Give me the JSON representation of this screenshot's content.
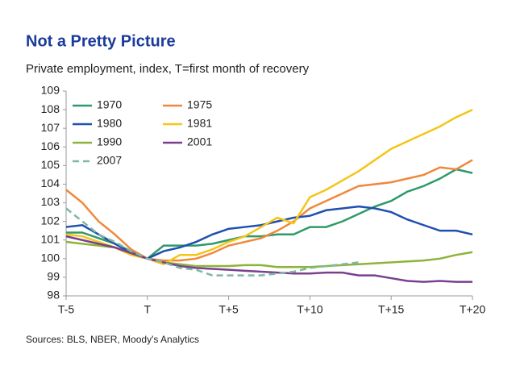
{
  "chart_data": {
    "type": "line",
    "title": "Not a Pretty Picture",
    "subtitle": "Private employment, index, T=first month of recovery",
    "source": "Sources: BLS, NBER, Moody's Analytics",
    "x": [
      -5,
      -4,
      -3,
      -2,
      -1,
      0,
      1,
      2,
      3,
      4,
      5,
      6,
      7,
      8,
      9,
      10,
      11,
      12,
      13,
      14,
      15,
      16,
      17,
      18,
      19,
      20
    ],
    "xlim": [
      -5,
      20
    ],
    "xticks": [
      {
        "value": -5,
        "label": "T-5"
      },
      {
        "value": 0,
        "label": "T"
      },
      {
        "value": 5,
        "label": "T+5"
      },
      {
        "value": 10,
        "label": "T+10"
      },
      {
        "value": 15,
        "label": "T+15"
      },
      {
        "value": 20,
        "label": "T+20"
      }
    ],
    "ylim": [
      98,
      109
    ],
    "yticks": [
      98,
      99,
      100,
      101,
      102,
      103,
      104,
      105,
      106,
      107,
      108,
      109
    ],
    "grid": false,
    "legend": "top-left",
    "series": [
      {
        "name": "1970",
        "color": "#2e9a6a",
        "dashed": false,
        "values": [
          101.4,
          101.4,
          101.1,
          100.8,
          100.4,
          100.0,
          100.7,
          100.7,
          100.7,
          100.8,
          101.0,
          101.2,
          101.2,
          101.3,
          101.3,
          101.7,
          101.7,
          102.0,
          102.4,
          102.8,
          103.1,
          103.6,
          103.9,
          104.3,
          104.8,
          104.6
        ]
      },
      {
        "name": "1975",
        "color": "#f0883a",
        "dashed": false,
        "values": [
          103.7,
          103.0,
          102.0,
          101.3,
          100.5,
          100.0,
          99.9,
          99.9,
          100.0,
          100.3,
          100.7,
          100.9,
          101.1,
          101.5,
          102.0,
          102.7,
          103.1,
          103.5,
          103.9,
          104.0,
          104.1,
          104.3,
          104.5,
          104.9,
          104.8,
          105.3
        ]
      },
      {
        "name": "1980",
        "color": "#1f4fb0",
        "dashed": false,
        "values": [
          101.7,
          101.8,
          101.3,
          100.8,
          100.3,
          100.0,
          100.4,
          100.6,
          100.9,
          101.3,
          101.6,
          101.7,
          101.8,
          102.0,
          102.2,
          102.3,
          102.6,
          102.7,
          102.8,
          102.7,
          102.5,
          102.1,
          101.8,
          101.5,
          101.5,
          101.3
        ]
      },
      {
        "name": "1981",
        "color": "#f5c518",
        "dashed": false,
        "values": [
          101.3,
          101.2,
          100.9,
          100.6,
          100.2,
          100.0,
          99.7,
          100.2,
          100.2,
          100.5,
          100.9,
          101.2,
          101.7,
          102.2,
          101.9,
          103.3,
          103.7,
          104.2,
          104.7,
          105.3,
          105.9,
          106.3,
          106.7,
          107.1,
          107.6,
          108.0
        ]
      },
      {
        "name": "1990",
        "color": "#8db33a",
        "dashed": false,
        "values": [
          100.9,
          100.8,
          100.7,
          100.6,
          100.3,
          100.0,
          99.8,
          99.7,
          99.6,
          99.6,
          99.6,
          99.65,
          99.65,
          99.55,
          99.55,
          99.55,
          99.6,
          99.65,
          99.7,
          99.75,
          99.8,
          99.85,
          99.9,
          100.0,
          100.2,
          100.35
        ]
      },
      {
        "name": "2001",
        "color": "#7b3f8f",
        "dashed": false,
        "values": [
          101.2,
          101.0,
          100.8,
          100.6,
          100.3,
          100.0,
          99.8,
          99.6,
          99.5,
          99.45,
          99.4,
          99.35,
          99.3,
          99.25,
          99.2,
          99.2,
          99.25,
          99.25,
          99.1,
          99.1,
          98.95,
          98.8,
          98.75,
          98.8,
          98.75,
          98.75
        ]
      },
      {
        "name": "2007",
        "color": "#7fb8a4",
        "dashed": true,
        "values": [
          102.7,
          102.0,
          101.3,
          100.9,
          100.4,
          100.0,
          99.8,
          99.5,
          99.4,
          99.1,
          99.1,
          99.1,
          99.1,
          99.2,
          99.3,
          99.5,
          99.6,
          99.7,
          99.8,
          null,
          null,
          null,
          null,
          null,
          null,
          null
        ]
      }
    ]
  }
}
